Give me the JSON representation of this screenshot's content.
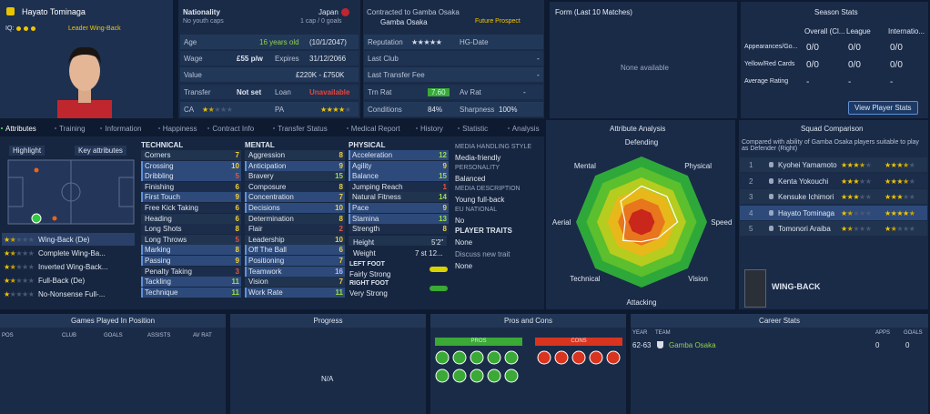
{
  "player": {
    "name": "Hayato Tominaga",
    "iq_label": "IQ:",
    "role": "Leader Wing-Back"
  },
  "info": {
    "nationality_label": "Nationality",
    "nationality": "Japan",
    "youth_caps": "No youth caps",
    "caps": "1 cap / 0 goals",
    "contract": "Contracted to Gamba Osaka",
    "club": "Gamba Osaka",
    "status": "Future Prospect",
    "left_rows": [
      {
        "label": "Age",
        "value": "16 years old",
        "extra": "(10/1/2047)"
      },
      {
        "label": "Wage",
        "value": "£55 p/w",
        "label2": "Expires",
        "value2": "31/12/2066"
      },
      {
        "label": "Value",
        "value": "£220K - £750K"
      },
      {
        "label": "Transfer",
        "value": "Not set",
        "label2": "Loan",
        "value2": "Unavailable"
      },
      {
        "label": "CA",
        "stars": 1.5,
        "label2": "PA",
        "stars2": 4
      }
    ],
    "right_rows": [
      {
        "label": "Reputation",
        "stars": 5,
        "label2": "HG-Date"
      },
      {
        "label": "Last Club",
        "value": "-"
      },
      {
        "label": "Last Transfer Fee",
        "value": "-"
      },
      {
        "label": "Trn Rat",
        "value": "7.60",
        "label2": "Av Rat",
        "value2": "-"
      },
      {
        "label": "Conditions",
        "value": "84%",
        "label2": "Sharpness",
        "value2": "100%"
      }
    ]
  },
  "form": {
    "title": "Form (Last 10 Matches)",
    "empty": "None available"
  },
  "season_stats": {
    "title": "Season Stats",
    "columns": [
      "Overall (Cl...",
      "League",
      "Internatio..."
    ],
    "rows": [
      {
        "label": "Appearances/Go...",
        "values": [
          "0/0",
          "0/0",
          "0/0"
        ]
      },
      {
        "label": "Yellow/Red Cards",
        "values": [
          "0/0",
          "0/0",
          "0/0"
        ]
      },
      {
        "label": "Average Rating",
        "values": [
          "-",
          "-",
          "-"
        ]
      }
    ],
    "button": "View Player Stats"
  },
  "tabs": [
    "Attributes",
    "Training",
    "Information",
    "Happiness",
    "Contract Info",
    "Transfer Status",
    "Medical Report",
    "History",
    "Statistic",
    "Analysis"
  ],
  "positions": {
    "highlight": "Highlight",
    "key": "Key attributes",
    "list": [
      {
        "name": "Wing-Back (De)",
        "stars": 1.5
      },
      {
        "name": "Complete Wing-Ba...",
        "stars": 1.5
      },
      {
        "name": "Inverted Wing-Back...",
        "stars": 1.5
      },
      {
        "name": "Full-Back (De)",
        "stars": 1.5
      },
      {
        "name": "No-Nonsense Full-...",
        "stars": 1
      }
    ]
  },
  "attributes": [
    {
      "title": "TECHNICAL",
      "items": [
        {
          "name": "Corners",
          "value": 7
        },
        {
          "name": "Crossing",
          "value": 10,
          "key": true
        },
        {
          "name": "Dribbling",
          "value": 5,
          "key": true
        },
        {
          "name": "Finishing",
          "value": 6
        },
        {
          "name": "First Touch",
          "value": 9,
          "key": true
        },
        {
          "name": "Free Kick Taking",
          "value": 6
        },
        {
          "name": "Heading",
          "value": 6
        },
        {
          "name": "Long Shots",
          "value": 8
        },
        {
          "name": "Long Throws",
          "value": 5
        },
        {
          "name": "Marking",
          "value": 8,
          "key": true
        },
        {
          "name": "Passing",
          "value": 9,
          "key": true
        },
        {
          "name": "Penalty Taking",
          "value": 3
        },
        {
          "name": "Tackling",
          "value": 11,
          "key": true
        },
        {
          "name": "Technique",
          "value": 11,
          "key": true
        }
      ]
    },
    {
      "title": "MENTAL",
      "items": [
        {
          "name": "Aggression",
          "value": 8
        },
        {
          "name": "Anticipation",
          "value": 9,
          "key": true
        },
        {
          "name": "Bravery",
          "value": 15
        },
        {
          "name": "Composure",
          "value": 8
        },
        {
          "name": "Concentration",
          "value": 7,
          "key": true
        },
        {
          "name": "Decisions",
          "value": 10,
          "key": true
        },
        {
          "name": "Determination",
          "value": 8
        },
        {
          "name": "Flair",
          "value": 2
        },
        {
          "name": "Leadership",
          "value": 10
        },
        {
          "name": "Off The Ball",
          "value": 6,
          "key": true
        },
        {
          "name": "Positioning",
          "value": 7,
          "key": true
        },
        {
          "name": "Teamwork",
          "value": 16,
          "key": true
        },
        {
          "name": "Vision",
          "value": 7
        },
        {
          "name": "Work Rate",
          "value": 11,
          "key": true
        }
      ]
    },
    {
      "title": "PHYSICAL",
      "items": [
        {
          "name": "Acceleration",
          "value": 12,
          "key": true
        },
        {
          "name": "Agility",
          "value": 9,
          "key": true
        },
        {
          "name": "Balance",
          "value": 15,
          "key": true
        },
        {
          "name": "Jumping Reach",
          "value": 1
        },
        {
          "name": "Natural Fitness",
          "value": 14
        },
        {
          "name": "Pace",
          "value": 9,
          "key": true
        },
        {
          "name": "Stamina",
          "value": 13,
          "key": true
        },
        {
          "name": "Strength",
          "value": 8
        }
      ]
    }
  ],
  "body": {
    "height_label": "Height",
    "height": "5'2\"",
    "weight_label": "Weight",
    "weight": "7 st 12...",
    "left_foot_label": "LEFT FOOT",
    "left_foot": "Fairly Strong",
    "right_foot_label": "RIGHT FOOT",
    "right_foot": "Very Strong"
  },
  "media": [
    {
      "label": "MEDIA HANDLING STYLE",
      "value": "Media-friendly"
    },
    {
      "label": "PERSONALITY",
      "value": "Balanced"
    },
    {
      "label": "MEDIA DESCRIPTION",
      "value": "Young full-back"
    },
    {
      "label": "EU NATIONAL",
      "value": "No"
    }
  ],
  "traits": {
    "title": "PLAYER TRAITS",
    "value": "None",
    "discuss": "Discuss new trait",
    "value2": "None"
  },
  "analysis": {
    "title": "Attribute Analysis",
    "rlim": [
      0,
      20
    ],
    "axes": [
      "Defending",
      "Physical",
      "Speed",
      "Vision",
      "Attacking",
      "Technical",
      "Aerial",
      "Mental"
    ],
    "values": [
      11,
      11,
      11,
      7,
      6,
      8,
      5,
      9
    ]
  },
  "squad": {
    "title": "Squad Comparison",
    "note": "Compared with ability of Gamba Osaka players suitable to play as Defender (Right)",
    "rows": [
      {
        "rank": 1,
        "name": "Kyohei Yamamoto",
        "ca": 3.5,
        "pa": 3.5
      },
      {
        "rank": 2,
        "name": "Kenta Yokouchi",
        "ca": 3,
        "pa": 3.5
      },
      {
        "rank": 3,
        "name": "Kensuke Ichimori",
        "ca": 3,
        "pa": 3
      },
      {
        "rank": 4,
        "name": "Hayato Tominaga",
        "ca": 1.5,
        "pa": 4.5
      },
      {
        "rank": 5,
        "name": "Tomonori Araiba",
        "ca": 1.5,
        "pa": 1.5
      }
    ],
    "role": "WING-BACK"
  },
  "games": {
    "title": "Games Played In Position",
    "columns": [
      "POS",
      "CLUB",
      "GOALS",
      "ASSISTS",
      "AV RAT"
    ]
  },
  "progress": {
    "title": "Progress",
    "empty": "N/A"
  },
  "pros_cons": {
    "title": "Pros and Cons",
    "pros": "PROS",
    "cons": "CONS"
  },
  "career": {
    "title": "Career Stats",
    "columns": [
      "YEAR",
      "TEAM",
      "APPS",
      "GOALS"
    ],
    "rows": [
      {
        "year": "62-63",
        "team": "Gamba Osaka",
        "apps": 0,
        "goals": 0
      }
    ]
  }
}
